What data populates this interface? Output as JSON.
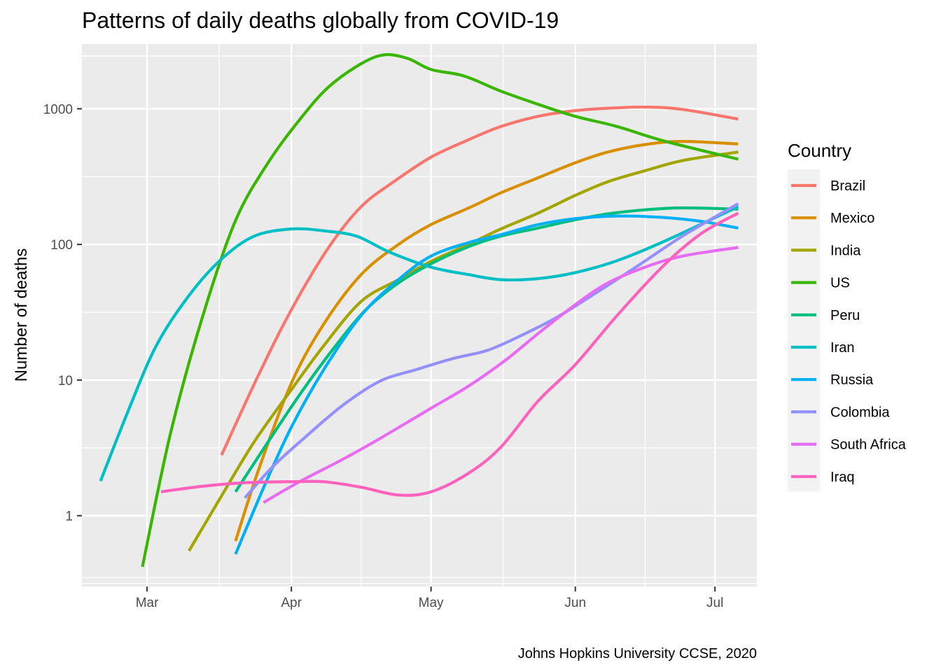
{
  "chart_data": {
    "type": "line",
    "title": "Patterns of daily deaths globally from COVID-19",
    "xlabel": "",
    "ylabel": "Number of deaths",
    "caption": "Johns Hopkins University CCSE, 2020",
    "y_scale": "log10",
    "ylim": [
      0.3,
      3000
    ],
    "xlim": [
      "2020-02-16",
      "2020-07-10"
    ],
    "x_ticks": [
      "2020-03-01",
      "2020-04-01",
      "2020-05-01",
      "2020-06-01",
      "2020-07-01"
    ],
    "x_tick_labels": [
      "Mar",
      "Apr",
      "May",
      "Jun",
      "Jul"
    ],
    "y_ticks": [
      1,
      10,
      100,
      1000
    ],
    "y_tick_labels": [
      "1",
      "10",
      "100",
      "1000"
    ],
    "grid": true,
    "legend": {
      "title": "Country",
      "position": "right"
    },
    "series": [
      {
        "name": "Brazil",
        "color": "#F8766D",
        "points": [
          [
            "2020-03-17",
            2.8
          ],
          [
            "2020-03-25",
            11
          ],
          [
            "2020-04-01",
            33
          ],
          [
            "2020-04-09",
            95
          ],
          [
            "2020-04-16",
            190
          ],
          [
            "2020-04-23",
            290
          ],
          [
            "2020-05-01",
            440
          ],
          [
            "2020-05-09",
            590
          ],
          [
            "2020-05-16",
            740
          ],
          [
            "2020-05-24",
            880
          ],
          [
            "2020-06-01",
            970
          ],
          [
            "2020-06-08",
            1010
          ],
          [
            "2020-06-16",
            1030
          ],
          [
            "2020-06-24",
            990
          ],
          [
            "2020-07-06",
            840
          ]
        ]
      },
      {
        "name": "Mexico",
        "color": "#D89000",
        "points": [
          [
            "2020-03-20",
            0.65
          ],
          [
            "2020-03-25",
            2.2
          ],
          [
            "2020-04-01",
            9.5
          ],
          [
            "2020-04-08",
            26
          ],
          [
            "2020-04-16",
            60
          ],
          [
            "2020-04-24",
            100
          ],
          [
            "2020-05-01",
            140
          ],
          [
            "2020-05-09",
            185
          ],
          [
            "2020-05-16",
            240
          ],
          [
            "2020-05-24",
            310
          ],
          [
            "2020-06-01",
            400
          ],
          [
            "2020-06-08",
            480
          ],
          [
            "2020-06-16",
            545
          ],
          [
            "2020-06-24",
            575
          ],
          [
            "2020-07-06",
            550
          ]
        ]
      },
      {
        "name": "India",
        "color": "#A3A500",
        "points": [
          [
            "2020-03-10",
            0.55
          ],
          [
            "2020-03-17",
            1.4
          ],
          [
            "2020-03-24",
            3.5
          ],
          [
            "2020-04-01",
            8.5
          ],
          [
            "2020-04-08",
            18
          ],
          [
            "2020-04-16",
            38
          ],
          [
            "2020-04-24",
            55
          ],
          [
            "2020-05-01",
            75
          ],
          [
            "2020-05-09",
            100
          ],
          [
            "2020-05-16",
            130
          ],
          [
            "2020-05-24",
            170
          ],
          [
            "2020-06-01",
            230
          ],
          [
            "2020-06-08",
            290
          ],
          [
            "2020-06-16",
            350
          ],
          [
            "2020-06-24",
            415
          ],
          [
            "2020-07-06",
            480
          ]
        ]
      },
      {
        "name": "US",
        "color": "#39B600",
        "points": [
          [
            "2020-02-29",
            0.42
          ],
          [
            "2020-03-06",
            4
          ],
          [
            "2020-03-13",
            30
          ],
          [
            "2020-03-20",
            150
          ],
          [
            "2020-03-27",
            400
          ],
          [
            "2020-04-03",
            850
          ],
          [
            "2020-04-09",
            1450
          ],
          [
            "2020-04-16",
            2150
          ],
          [
            "2020-04-21",
            2500
          ],
          [
            "2020-04-26",
            2350
          ],
          [
            "2020-05-01",
            1950
          ],
          [
            "2020-05-08",
            1750
          ],
          [
            "2020-05-16",
            1350
          ],
          [
            "2020-05-24",
            1080
          ],
          [
            "2020-06-01",
            880
          ],
          [
            "2020-06-10",
            740
          ],
          [
            "2020-06-20",
            580
          ],
          [
            "2020-07-06",
            425
          ]
        ]
      },
      {
        "name": "Peru",
        "color": "#00BF7D",
        "points": [
          [
            "2020-03-20",
            1.5
          ],
          [
            "2020-03-27",
            3.5
          ],
          [
            "2020-04-03",
            8
          ],
          [
            "2020-04-10",
            17
          ],
          [
            "2020-04-17",
            33
          ],
          [
            "2020-04-24",
            52
          ],
          [
            "2020-05-01",
            72
          ],
          [
            "2020-05-09",
            96
          ],
          [
            "2020-05-16",
            115
          ],
          [
            "2020-05-24",
            132
          ],
          [
            "2020-06-01",
            152
          ],
          [
            "2020-06-08",
            168
          ],
          [
            "2020-06-16",
            180
          ],
          [
            "2020-06-24",
            186
          ],
          [
            "2020-07-06",
            182
          ]
        ]
      },
      {
        "name": "Iran",
        "color": "#00BFC4",
        "points": [
          [
            "2020-02-20",
            1.8
          ],
          [
            "2020-02-26",
            6
          ],
          [
            "2020-03-03",
            18
          ],
          [
            "2020-03-10",
            42
          ],
          [
            "2020-03-17",
            78
          ],
          [
            "2020-03-24",
            115
          ],
          [
            "2020-04-01",
            130
          ],
          [
            "2020-04-08",
            126
          ],
          [
            "2020-04-15",
            115
          ],
          [
            "2020-04-22",
            88
          ],
          [
            "2020-05-01",
            68
          ],
          [
            "2020-05-09",
            60
          ],
          [
            "2020-05-16",
            55
          ],
          [
            "2020-05-24",
            56
          ],
          [
            "2020-06-01",
            62
          ],
          [
            "2020-06-10",
            76
          ],
          [
            "2020-06-20",
            105
          ],
          [
            "2020-07-06",
            190
          ]
        ]
      },
      {
        "name": "Russia",
        "color": "#00B0F6",
        "points": [
          [
            "2020-03-20",
            0.52
          ],
          [
            "2020-03-26",
            1.6
          ],
          [
            "2020-04-01",
            4.5
          ],
          [
            "2020-04-08",
            12
          ],
          [
            "2020-04-16",
            30
          ],
          [
            "2020-04-24",
            55
          ],
          [
            "2020-05-01",
            82
          ],
          [
            "2020-05-09",
            103
          ],
          [
            "2020-05-16",
            118
          ],
          [
            "2020-05-24",
            140
          ],
          [
            "2020-06-01",
            155
          ],
          [
            "2020-06-10",
            162
          ],
          [
            "2020-06-20",
            158
          ],
          [
            "2020-06-28",
            148
          ],
          [
            "2020-07-06",
            132
          ]
        ]
      },
      {
        "name": "Colombia",
        "color": "#9590FF",
        "points": [
          [
            "2020-03-22",
            1.35
          ],
          [
            "2020-03-28",
            2.3
          ],
          [
            "2020-04-04",
            3.8
          ],
          [
            "2020-04-12",
            6.5
          ],
          [
            "2020-04-20",
            9.8
          ],
          [
            "2020-04-28",
            12
          ],
          [
            "2020-05-06",
            14.5
          ],
          [
            "2020-05-13",
            16.5
          ],
          [
            "2020-05-20",
            21
          ],
          [
            "2020-05-28",
            29
          ],
          [
            "2020-06-05",
            43
          ],
          [
            "2020-06-14",
            68
          ],
          [
            "2020-06-24",
            115
          ],
          [
            "2020-07-06",
            200
          ]
        ]
      },
      {
        "name": "South Africa",
        "color": "#E76BF3",
        "points": [
          [
            "2020-03-26",
            1.25
          ],
          [
            "2020-04-03",
            1.8
          ],
          [
            "2020-04-12",
            2.6
          ],
          [
            "2020-04-20",
            3.7
          ],
          [
            "2020-05-01",
            6.2
          ],
          [
            "2020-05-09",
            9
          ],
          [
            "2020-05-17",
            14
          ],
          [
            "2020-05-24",
            22
          ],
          [
            "2020-06-01",
            36
          ],
          [
            "2020-06-08",
            52
          ],
          [
            "2020-06-16",
            68
          ],
          [
            "2020-06-24",
            82
          ],
          [
            "2020-07-06",
            95
          ]
        ]
      },
      {
        "name": "Iraq",
        "color": "#FF62BC",
        "points": [
          [
            "2020-03-04",
            1.5
          ],
          [
            "2020-03-13",
            1.65
          ],
          [
            "2020-03-22",
            1.75
          ],
          [
            "2020-04-01",
            1.78
          ],
          [
            "2020-04-08",
            1.78
          ],
          [
            "2020-04-16",
            1.62
          ],
          [
            "2020-04-24",
            1.42
          ],
          [
            "2020-05-01",
            1.5
          ],
          [
            "2020-05-09",
            2.05
          ],
          [
            "2020-05-16",
            3.2
          ],
          [
            "2020-05-24",
            7
          ],
          [
            "2020-06-01",
            13
          ],
          [
            "2020-06-10",
            30
          ],
          [
            "2020-06-20",
            70
          ],
          [
            "2020-06-28",
            120
          ],
          [
            "2020-07-06",
            170
          ]
        ]
      }
    ]
  }
}
